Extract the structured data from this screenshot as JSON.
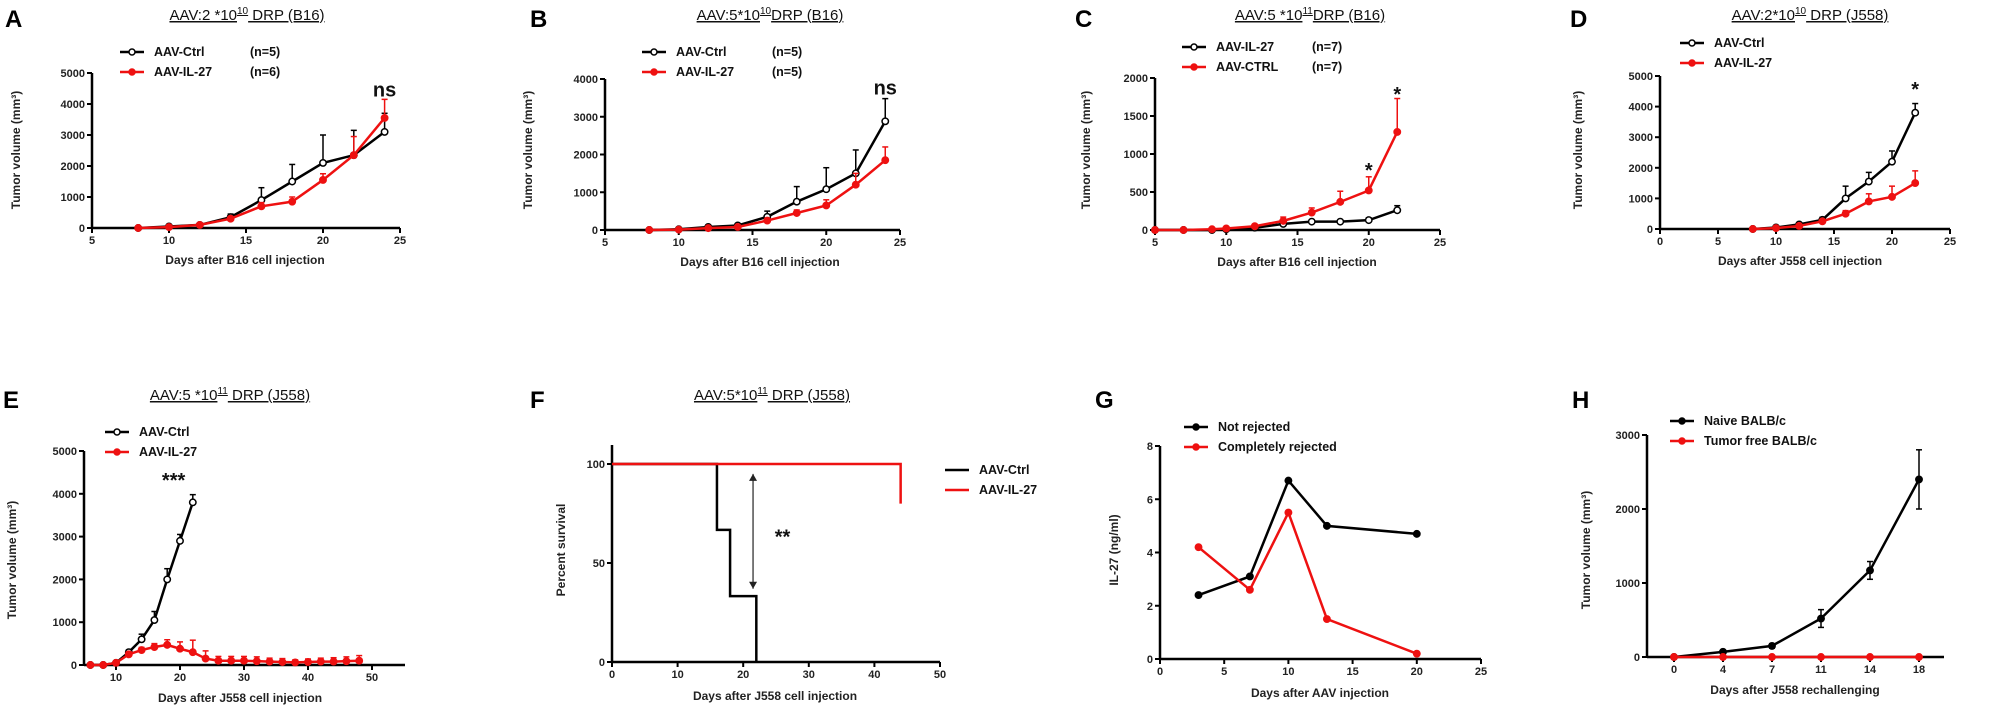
{
  "colors": {
    "ctrl": "#000000",
    "il27": "#ee1111"
  },
  "chart_data": [
    {
      "id": "A",
      "type": "line",
      "letter": "A",
      "title": {
        "base": "AAV:2 *10",
        "exp": "10",
        "rest": " DRP (B16)"
      },
      "xlabel": "Days after B16 cell  injection",
      "ylabel": "Tumor volume (mm³)",
      "xlim": [
        5,
        25
      ],
      "ylim": [
        0,
        5000
      ],
      "xticks": [
        5,
        10,
        15,
        20,
        25
      ],
      "yticks": [
        0,
        1000,
        2000,
        3000,
        4000,
        5000
      ],
      "series": [
        {
          "name": "AAV-Ctrl",
          "n": "(n=5)",
          "color": "ctrl",
          "marker": "open",
          "x": [
            8,
            10,
            12,
            14,
            16,
            18,
            20,
            22,
            24
          ],
          "y": [
            0,
            50,
            100,
            350,
            900,
            1500,
            2100,
            2350,
            3100
          ],
          "err": [
            0,
            20,
            40,
            100,
            400,
            550,
            900,
            800,
            600
          ]
        },
        {
          "name": "AAV-IL-27",
          "n": "(n=6)",
          "color": "il27",
          "marker": "filled",
          "x": [
            8,
            10,
            12,
            14,
            16,
            18,
            20,
            22,
            24
          ],
          "y": [
            0,
            30,
            100,
            300,
            700,
            850,
            1550,
            2350,
            3550
          ],
          "err": [
            0,
            15,
            30,
            60,
            120,
            150,
            200,
            600,
            600
          ]
        }
      ],
      "annotations": [
        {
          "text": "ns",
          "x": 24,
          "y": 4500
        }
      ]
    },
    {
      "id": "B",
      "type": "line",
      "letter": "B",
      "title": {
        "base": "AAV:5*10",
        "exp": "10",
        "rest": "DRP (B16)"
      },
      "xlabel": "Days after B16 cell  injection",
      "ylabel": "Tumor volume (mm³)",
      "xlim": [
        5,
        25
      ],
      "ylim": [
        0,
        4000
      ],
      "xticks": [
        5,
        10,
        15,
        20,
        25
      ],
      "yticks": [
        0,
        1000,
        2000,
        3000,
        4000
      ],
      "series": [
        {
          "name": "AAV-Ctrl",
          "n": "(n=5)",
          "color": "ctrl",
          "marker": "open",
          "x": [
            8,
            10,
            12,
            14,
            16,
            18,
            20,
            22,
            24
          ],
          "y": [
            0,
            20,
            80,
            120,
            350,
            750,
            1080,
            1500,
            2880
          ],
          "err": [
            0,
            10,
            20,
            30,
            150,
            400,
            570,
            620,
            600
          ]
        },
        {
          "name": "AAV-IL-27",
          "n": "(n=5)",
          "color": "il27",
          "marker": "filled",
          "x": [
            8,
            10,
            12,
            14,
            16,
            18,
            20,
            22,
            24
          ],
          "y": [
            0,
            10,
            50,
            80,
            250,
            450,
            650,
            1200,
            1850
          ],
          "err": [
            0,
            5,
            15,
            20,
            60,
            80,
            150,
            300,
            350
          ]
        }
      ],
      "annotations": [
        {
          "text": "ns",
          "x": 24,
          "y": 3800
        }
      ]
    },
    {
      "id": "C",
      "type": "line",
      "letter": "C",
      "title": {
        "base": "AAV:5 *10",
        "exp": "11",
        "rest": "DRP (B16)"
      },
      "xlabel": "Days after B16 cell  injection",
      "ylabel": "Tumor volume (mm³)",
      "xlim": [
        5,
        25
      ],
      "ylim": [
        0,
        2000
      ],
      "xticks": [
        5,
        10,
        15,
        20,
        25
      ],
      "yticks": [
        0,
        500,
        1000,
        1500,
        2000
      ],
      "series": [
        {
          "name": "AAV-IL-27",
          "n": "(n=7)",
          "color": "ctrl",
          "marker": "open",
          "x": [
            5,
            7,
            9,
            10,
            12,
            14,
            16,
            18,
            20,
            22
          ],
          "y": [
            0,
            0,
            0,
            10,
            30,
            80,
            110,
            110,
            130,
            260
          ],
          "err": [
            0,
            0,
            0,
            5,
            10,
            20,
            20,
            20,
            30,
            60
          ]
        },
        {
          "name": "AAV-CTRL",
          "n": "(n=7)",
          "color": "il27",
          "marker": "filled",
          "x": [
            5,
            7,
            9,
            10,
            12,
            14,
            16,
            18,
            20,
            22
          ],
          "y": [
            0,
            0,
            10,
            20,
            50,
            120,
            230,
            370,
            520,
            1290
          ],
          "err": [
            0,
            0,
            5,
            10,
            20,
            50,
            60,
            140,
            180,
            440
          ]
        }
      ],
      "annotations": [
        {
          "text": "*",
          "x": 20,
          "y": 800
        },
        {
          "text": "*",
          "x": 22,
          "y": 1800
        }
      ]
    },
    {
      "id": "D",
      "type": "line",
      "letter": "D",
      "title": {
        "base": "AAV:2*10",
        "exp": "10",
        "rest": " DRP (J558)"
      },
      "xlabel": "Days after J558 cell injection",
      "ylabel": "Tumor volume (mm³)",
      "xlim": [
        0,
        25
      ],
      "ylim": [
        0,
        5000
      ],
      "xticks": [
        0,
        5,
        10,
        15,
        20,
        25
      ],
      "yticks": [
        0,
        1000,
        2000,
        3000,
        4000,
        5000
      ],
      "series": [
        {
          "name": "AAV-Ctrl",
          "n": "",
          "color": "ctrl",
          "marker": "open",
          "x": [
            8,
            10,
            12,
            14,
            16,
            18,
            20,
            22
          ],
          "y": [
            0,
            50,
            150,
            300,
            1000,
            1550,
            2200,
            3800
          ],
          "err": [
            0,
            20,
            50,
            80,
            400,
            300,
            350,
            300
          ]
        },
        {
          "name": "AAV-IL-27",
          "n": "",
          "color": "il27",
          "marker": "filled",
          "x": [
            8,
            10,
            12,
            14,
            16,
            18,
            20,
            22
          ],
          "y": [
            0,
            30,
            100,
            250,
            500,
            900,
            1050,
            1500
          ],
          "err": [
            0,
            10,
            30,
            50,
            100,
            250,
            350,
            400
          ]
        }
      ],
      "annotations": [
        {
          "text": "*",
          "x": 22,
          "y": 4600
        }
      ]
    },
    {
      "id": "E",
      "type": "line",
      "letter": "E",
      "title": {
        "base": "AAV:5 *10",
        "exp": "11",
        "rest": " DRP (J558)"
      },
      "xlabel": "Days after J558 cell injection",
      "ylabel": "Tumor volume (mm³)",
      "xlim": [
        5,
        55
      ],
      "ylim": [
        0,
        5000
      ],
      "xticks": [
        10,
        20,
        30,
        40,
        50
      ],
      "yticks": [
        0,
        1000,
        2000,
        3000,
        4000,
        5000
      ],
      "series": [
        {
          "name": "AAV-Ctrl",
          "n": "",
          "color": "ctrl",
          "marker": "open",
          "x": [
            6,
            8,
            10,
            12,
            14,
            16,
            18,
            20,
            22
          ],
          "y": [
            0,
            0,
            50,
            300,
            600,
            1050,
            2000,
            2900,
            3800
          ],
          "err": [
            0,
            0,
            20,
            50,
            120,
            200,
            250,
            150,
            180
          ]
        },
        {
          "name": "AAV-IL-27",
          "n": "",
          "color": "il27",
          "marker": "filled",
          "x": [
            6,
            8,
            10,
            12,
            14,
            16,
            18,
            20,
            22,
            24,
            26,
            28,
            30,
            32,
            34,
            36,
            38,
            40,
            42,
            44,
            46,
            48
          ],
          "y": [
            0,
            0,
            50,
            250,
            350,
            420,
            470,
            380,
            300,
            150,
            100,
            100,
            100,
            90,
            80,
            70,
            60,
            70,
            80,
            80,
            90,
            100
          ],
          "err": [
            0,
            0,
            30,
            60,
            60,
            80,
            120,
            160,
            280,
            180,
            100,
            100,
            100,
            100,
            80,
            80,
            60,
            70,
            80,
            90,
            100,
            120
          ]
        }
      ],
      "annotations": [
        {
          "text": "***",
          "x": 19,
          "y": 4350
        }
      ]
    },
    {
      "id": "F",
      "type": "line",
      "subtype": "survival",
      "letter": "F",
      "title": {
        "base": "AAV:5*10",
        "exp": "11",
        "rest": " DRP (J558)"
      },
      "xlabel": "Days after J558 cell injection",
      "ylabel": "Percent survival",
      "xlim": [
        0,
        50
      ],
      "ylim": [
        0,
        100
      ],
      "xticks": [
        0,
        10,
        20,
        30,
        40,
        50
      ],
      "yticks": [
        0,
        50,
        100
      ],
      "series": [
        {
          "name": "AAV-Ctrl",
          "color": "ctrl",
          "x": [
            0,
            16,
            16,
            18,
            18,
            22,
            22
          ],
          "y": [
            100,
            100,
            66.7,
            66.7,
            33.3,
            33.3,
            0
          ]
        },
        {
          "name": "AAV-IL-27",
          "color": "il27",
          "x": [
            0,
            44,
            44
          ],
          "y": [
            100,
            100,
            80
          ]
        }
      ],
      "annotations": [
        {
          "text": "**",
          "x": 26,
          "y": 64
        }
      ],
      "arrow": {
        "x": 21.5,
        "y_from": 95,
        "y_to": 37
      }
    },
    {
      "id": "G",
      "type": "line",
      "letter": "G",
      "xlabel": "Days after AAV injection",
      "ylabel": "IL-27 (ng/ml)",
      "xlim": [
        0,
        25
      ],
      "ylim": [
        0,
        8
      ],
      "xticks": [
        0,
        5,
        10,
        15,
        20,
        25
      ],
      "yticks": [
        0,
        2,
        4,
        6,
        8
      ],
      "series": [
        {
          "name": "Not rejected",
          "color": "ctrl",
          "marker": "filled",
          "x": [
            3,
            7,
            10,
            13,
            20
          ],
          "y": [
            2.4,
            3.1,
            6.7,
            5.0,
            4.7
          ]
        },
        {
          "name": "Completely rejected",
          "color": "il27",
          "marker": "filled",
          "x": [
            3,
            7,
            10,
            13,
            20
          ],
          "y": [
            4.2,
            2.6,
            5.5,
            1.5,
            0.2
          ]
        }
      ]
    },
    {
      "id": "H",
      "type": "line",
      "letter": "H",
      "xlabel": "Days after J558 rechallenging",
      "ylabel": "Tumor volume (mm³)",
      "categories": [
        "0",
        "4",
        "7",
        "11",
        "14",
        "18"
      ],
      "ylim": [
        0,
        3000
      ],
      "yticks": [
        0,
        1000,
        2000,
        3000
      ],
      "series": [
        {
          "name": "Naive BALB/c",
          "color": "ctrl",
          "marker": "filled",
          "y": [
            0,
            70,
            150,
            520,
            1170,
            2400
          ],
          "err": [
            0,
            20,
            30,
            120,
            120,
            400
          ]
        },
        {
          "name": "Tumor free BALB/c",
          "color": "il27",
          "marker": "filled",
          "y": [
            0,
            0,
            0,
            0,
            0,
            0
          ],
          "err": [
            0,
            0,
            0,
            0,
            0,
            0
          ]
        }
      ]
    }
  ]
}
